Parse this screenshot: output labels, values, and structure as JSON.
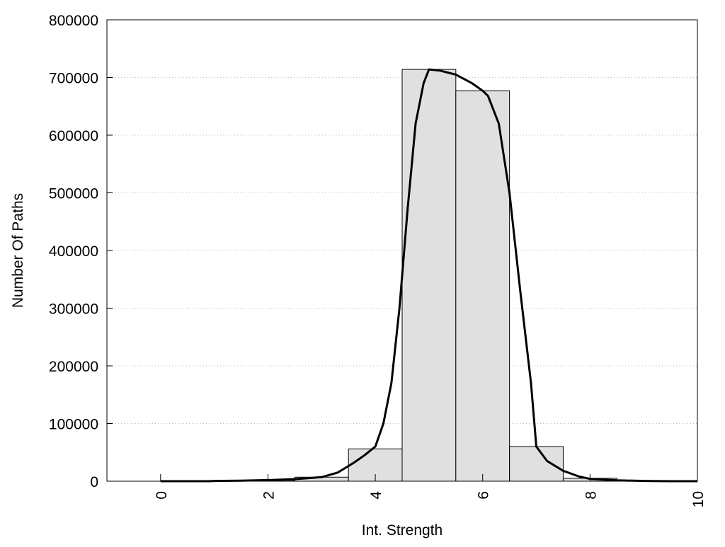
{
  "chart_data": {
    "type": "bar",
    "title": "",
    "xlabel": "Int. Strength",
    "ylabel": "Number Of Paths",
    "xlim": [
      -1,
      10
    ],
    "ylim": [
      0,
      800000
    ],
    "x_ticks": [
      0,
      2,
      4,
      6,
      8,
      10
    ],
    "y_ticks": [
      0,
      100000,
      200000,
      300000,
      400000,
      500000,
      600000,
      700000,
      800000
    ],
    "grid": "horizontal-dotted",
    "bars": [
      {
        "x": 0,
        "value": 0
      },
      {
        "x": 1,
        "value": 500
      },
      {
        "x": 2,
        "value": 1500
      },
      {
        "x": 3,
        "value": 7000
      },
      {
        "x": 4,
        "value": 56000
      },
      {
        "x": 5,
        "value": 714000
      },
      {
        "x": 6,
        "value": 677000
      },
      {
        "x": 7,
        "value": 60000
      },
      {
        "x": 8,
        "value": 5000
      },
      {
        "x": 9,
        "value": 500
      },
      {
        "x": 10,
        "value": 0
      }
    ],
    "curve": {
      "x": [
        0,
        0.5,
        0.9,
        1,
        1.5,
        2,
        2.5,
        3,
        3.3,
        3.6,
        3.8,
        4,
        4.15,
        4.3,
        4.45,
        4.6,
        4.75,
        4.9,
        5,
        5.2,
        5.5,
        5.8,
        6,
        6.1,
        6.3,
        6.5,
        6.7,
        6.9,
        7,
        7.2,
        7.5,
        7.8,
        8,
        8.5,
        9,
        9.5,
        10
      ],
      "y": [
        0,
        0,
        0,
        500,
        1000,
        2000,
        3500,
        7000,
        15000,
        32000,
        45000,
        60000,
        100000,
        170000,
        300000,
        470000,
        620000,
        690000,
        714000,
        712000,
        705000,
        690000,
        677000,
        668000,
        620000,
        500000,
        330000,
        170000,
        60000,
        35000,
        18000,
        8000,
        4000,
        1500,
        500,
        0,
        0
      ]
    }
  }
}
